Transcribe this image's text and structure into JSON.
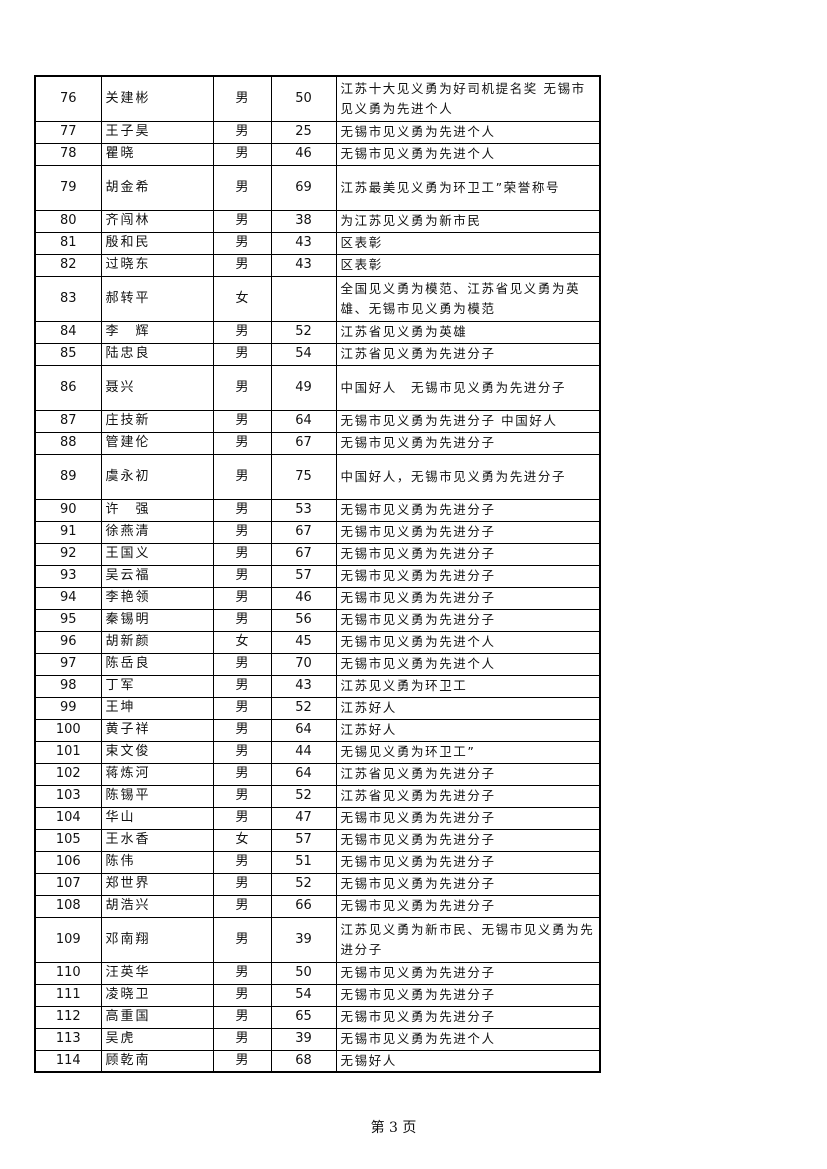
{
  "rows": [
    {
      "no": "76",
      "name": "关建彬",
      "sex": "男",
      "age": "50",
      "honor": "江苏十大见义勇为好司机提名奖 无锡市见义勇为先进个人"
    },
    {
      "no": "77",
      "name": "王子昊",
      "sex": "男",
      "age": "25",
      "honor": "无锡市见义勇为先进个人"
    },
    {
      "no": "78",
      "name": "瞿晓",
      "sex": "男",
      "age": "46",
      "honor": "无锡市见义勇为先进个人"
    },
    {
      "no": "79",
      "name": "胡金希",
      "sex": "男",
      "age": "69",
      "honor": " 江苏最美见义勇为环卫工”荣誉称号"
    },
    {
      "no": "80",
      "name": "齐闯林",
      "sex": "男",
      "age": "38",
      "honor": " 为江苏见义勇为新市民"
    },
    {
      "no": "81",
      "name": "殷和民",
      "sex": "男",
      "age": "43",
      "honor": "区表彰"
    },
    {
      "no": "82",
      "name": "过晓东",
      "sex": "男",
      "age": "43",
      "honor": "区表彰"
    },
    {
      "no": "83",
      "name": "郝转平",
      "sex": "女",
      "age": "",
      "honor": "全国见义勇为模范、江苏省见义勇为英雄、无锡市见义勇为模范"
    },
    {
      "no": "84",
      "name": "李　辉",
      "sex": "男",
      "age": "52",
      "honor": "江苏省见义勇为英雄"
    },
    {
      "no": "85",
      "name": "陆忠良",
      "sex": "男",
      "age": "54",
      "honor": "江苏省见义勇为先进分子"
    },
    {
      "no": "86",
      "name": "聂兴",
      "sex": "男",
      "age": "49",
      "honor": "中国好人　无锡市见义勇为先进分子"
    },
    {
      "no": "87",
      "name": "庄技新",
      "sex": "男",
      "age": "64",
      "honor": "无锡市见义勇为先进分子 中国好人"
    },
    {
      "no": "88",
      "name": "管建伦",
      "sex": "男",
      "age": "67",
      "honor": "无锡市见义勇为先进分子"
    },
    {
      "no": "89",
      "name": "虞永初",
      "sex": "男",
      "age": "75",
      "honor": "中国好人，无锡市见义勇为先进分子"
    },
    {
      "no": "90",
      "name": "许　强",
      "sex": "男",
      "age": "53",
      "honor": "无锡市见义勇为先进分子"
    },
    {
      "no": "91",
      "name": "徐燕清",
      "sex": "男",
      "age": "67",
      "honor": "无锡市见义勇为先进分子"
    },
    {
      "no": "92",
      "name": "王国义",
      "sex": "男",
      "age": "67",
      "honor": "无锡市见义勇为先进分子"
    },
    {
      "no": "93",
      "name": "吴云福",
      "sex": "男",
      "age": "57",
      "honor": "无锡市见义勇为先进分子"
    },
    {
      "no": "94",
      "name": "李艳领",
      "sex": "男",
      "age": "46",
      "honor": "无锡市见义勇为先进分子"
    },
    {
      "no": "95",
      "name": "秦锡明",
      "sex": "男",
      "age": "56",
      "honor": "无锡市见义勇为先进分子"
    },
    {
      "no": "96",
      "name": "胡新颜",
      "sex": "女",
      "age": "45",
      "honor": "无锡市见义勇为先进个人"
    },
    {
      "no": "97",
      "name": "陈岳良",
      "sex": "男",
      "age": "70",
      "honor": "无锡市见义勇为先进个人"
    },
    {
      "no": "98",
      "name": "丁军",
      "sex": "男",
      "age": "43",
      "honor": "江苏见义勇为环卫工"
    },
    {
      "no": "99",
      "name": "王坤",
      "sex": "男",
      "age": "52",
      "honor": "江苏好人"
    },
    {
      "no": "100",
      "name": "黄子祥",
      "sex": "男",
      "age": "64",
      "honor": "江苏好人"
    },
    {
      "no": "101",
      "name": "束文俊",
      "sex": "男",
      "age": "44",
      "honor": "无锡见义勇为环卫工”"
    },
    {
      "no": "102",
      "name": "蒋炼河",
      "sex": "男",
      "age": "64",
      "honor": "江苏省见义勇为先进分子"
    },
    {
      "no": "103",
      "name": "陈锡平",
      "sex": "男",
      "age": "52",
      "honor": "江苏省见义勇为先进分子"
    },
    {
      "no": "104",
      "name": "华山",
      "sex": "男",
      "age": "47",
      "honor": "无锡市见义勇为先进分子"
    },
    {
      "no": "105",
      "name": "王水香",
      "sex": "女",
      "age": "57",
      "honor": "无锡市见义勇为先进分子"
    },
    {
      "no": "106",
      "name": "陈伟",
      "sex": "男",
      "age": "51",
      "honor": "无锡市见义勇为先进分子"
    },
    {
      "no": "107",
      "name": "郑世界",
      "sex": "男",
      "age": "52",
      "honor": "无锡市见义勇为先进分子"
    },
    {
      "no": "108",
      "name": "胡浩兴",
      "sex": "男",
      "age": "66",
      "honor": "无锡市见义勇为先进分子"
    },
    {
      "no": "109",
      "name": "邓南翔",
      "sex": "男",
      "age": "39",
      "honor": "江苏见义勇为新市民、无锡市见义勇为先进分子"
    },
    {
      "no": "110",
      "name": "汪英华",
      "sex": "男",
      "age": "50",
      "honor": "无锡市见义勇为先进分子"
    },
    {
      "no": "111",
      "name": "凌晓卫",
      "sex": "男",
      "age": "54",
      "honor": "无锡市见义勇为先进分子"
    },
    {
      "no": "112",
      "name": "高重国",
      "sex": "男",
      "age": "65",
      "honor": "无锡市见义勇为先进分子"
    },
    {
      "no": "113",
      "name": "吴虎",
      "sex": "男",
      "age": "39",
      "honor": "无锡市见义勇为先进个人"
    },
    {
      "no": "114",
      "name": "顾乾南",
      "sex": "男",
      "age": "68",
      "honor": "无锡好人"
    }
  ],
  "footer": {
    "page_label": "第 3 页"
  }
}
